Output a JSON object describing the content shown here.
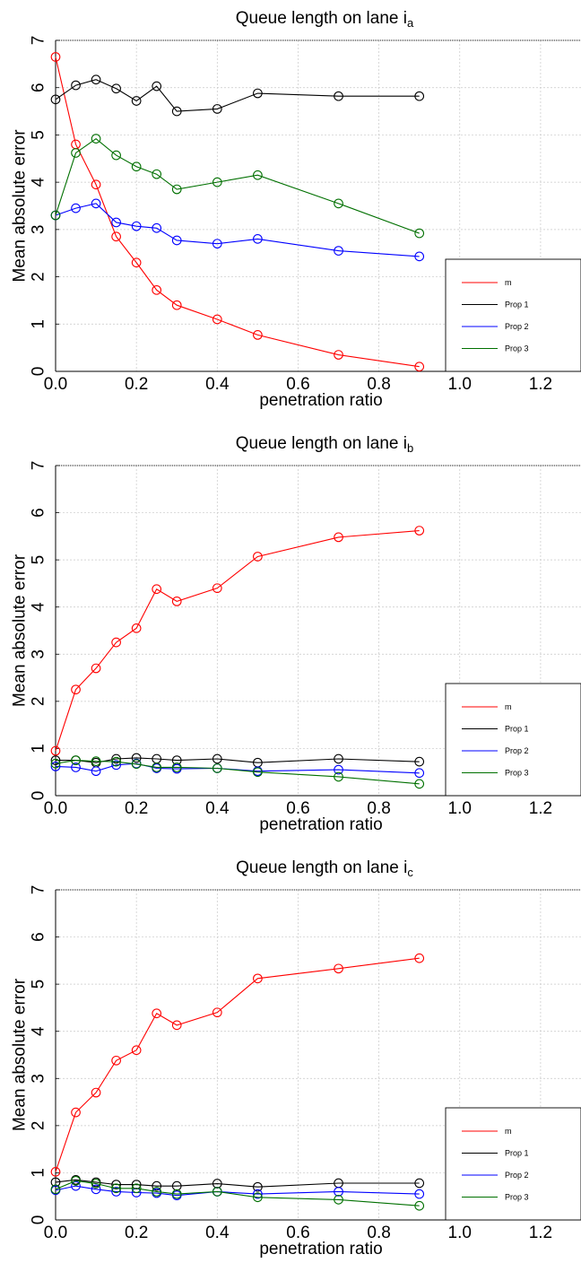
{
  "chart_data": [
    {
      "type": "line",
      "title": "Queue length on lane i",
      "title_sub": "a",
      "xlabel": "penetration ratio",
      "ylabel": "Mean absolute error",
      "xlim": [
        0,
        1.3
      ],
      "ylim": [
        0,
        7
      ],
      "xticks": [
        0.0,
        0.2,
        0.4,
        0.6,
        0.8,
        1.0,
        1.2
      ],
      "xtick_labels": [
        "0.0",
        "0.2",
        "0.4",
        "0.6",
        "0.8",
        "1.0",
        "1.2"
      ],
      "yticks": [
        0,
        1,
        2,
        3,
        4,
        5,
        6,
        7
      ],
      "ytick_labels": [
        "0",
        "1",
        "2",
        "3",
        "4",
        "5",
        "6",
        "7"
      ],
      "grid": true,
      "legend_position": "bottom-right",
      "x": [
        0.0,
        0.05,
        0.1,
        0.15,
        0.2,
        0.25,
        0.3,
        0.4,
        0.5,
        0.7,
        0.9
      ],
      "series": [
        {
          "name": "m",
          "color": "#ff0000",
          "values": [
            6.65,
            4.8,
            3.95,
            2.85,
            2.3,
            1.72,
            1.4,
            1.1,
            0.77,
            0.35,
            0.1
          ]
        },
        {
          "name": "Prop 1",
          "color": "#000000",
          "values": [
            5.75,
            6.05,
            6.17,
            5.98,
            5.72,
            6.03,
            5.5,
            5.55,
            5.88,
            5.82,
            5.82
          ]
        },
        {
          "name": "Prop 2",
          "color": "#0000ff",
          "values": [
            3.3,
            3.45,
            3.55,
            3.15,
            3.07,
            3.03,
            2.77,
            2.7,
            2.8,
            2.55,
            2.43
          ]
        },
        {
          "name": "Prop 3",
          "color": "#007000",
          "values": [
            3.3,
            4.62,
            4.92,
            4.57,
            4.33,
            4.17,
            3.85,
            4.0,
            4.15,
            3.55,
            2.92
          ]
        }
      ]
    },
    {
      "type": "line",
      "title": "Queue length on lane i",
      "title_sub": "b",
      "xlabel": "penetration ratio",
      "ylabel": "Mean absolute error",
      "xlim": [
        0,
        1.3
      ],
      "ylim": [
        0,
        7
      ],
      "xticks": [
        0.0,
        0.2,
        0.4,
        0.6,
        0.8,
        1.0,
        1.2
      ],
      "xtick_labels": [
        "0.0",
        "0.2",
        "0.4",
        "0.6",
        "0.8",
        "1.0",
        "1.2"
      ],
      "yticks": [
        0,
        1,
        2,
        3,
        4,
        5,
        6,
        7
      ],
      "ytick_labels": [
        "0",
        "1",
        "2",
        "3",
        "4",
        "5",
        "6",
        "7"
      ],
      "grid": true,
      "legend_position": "bottom-right",
      "x": [
        0.0,
        0.05,
        0.1,
        0.15,
        0.2,
        0.25,
        0.3,
        0.4,
        0.5,
        0.7,
        0.9
      ],
      "series": [
        {
          "name": "m",
          "color": "#ff0000",
          "values": [
            0.95,
            2.25,
            2.7,
            3.25,
            3.55,
            4.38,
            4.12,
            4.4,
            5.07,
            5.48,
            5.62
          ]
        },
        {
          "name": "Prop 1",
          "color": "#000000",
          "values": [
            0.75,
            0.75,
            0.7,
            0.78,
            0.8,
            0.78,
            0.75,
            0.78,
            0.7,
            0.78,
            0.72
          ]
        },
        {
          "name": "Prop 2",
          "color": "#0000ff",
          "values": [
            0.62,
            0.6,
            0.52,
            0.65,
            0.68,
            0.58,
            0.57,
            0.58,
            0.52,
            0.55,
            0.48
          ]
        },
        {
          "name": "Prop 3",
          "color": "#007000",
          "values": [
            0.68,
            0.75,
            0.73,
            0.72,
            0.67,
            0.6,
            0.6,
            0.58,
            0.5,
            0.4,
            0.25
          ]
        }
      ]
    },
    {
      "type": "line",
      "title": "Queue length on lane i",
      "title_sub": "c",
      "xlabel": "penetration ratio",
      "ylabel": "Mean absolute error",
      "xlim": [
        0,
        1.3
      ],
      "ylim": [
        0,
        7
      ],
      "xticks": [
        0.0,
        0.2,
        0.4,
        0.6,
        0.8,
        1.0,
        1.2
      ],
      "xtick_labels": [
        "0.0",
        "0.2",
        "0.4",
        "0.6",
        "0.8",
        "1.0",
        "1.2"
      ],
      "yticks": [
        0,
        1,
        2,
        3,
        4,
        5,
        6,
        7
      ],
      "ytick_labels": [
        "0",
        "1",
        "2",
        "3",
        "4",
        "5",
        "6",
        "7"
      ],
      "grid": true,
      "legend_position": "bottom-right",
      "x": [
        0.0,
        0.05,
        0.1,
        0.15,
        0.2,
        0.25,
        0.3,
        0.4,
        0.5,
        0.7,
        0.9
      ],
      "series": [
        {
          "name": "m",
          "color": "#ff0000",
          "values": [
            1.02,
            2.28,
            2.7,
            3.38,
            3.6,
            4.38,
            4.13,
            4.4,
            5.12,
            5.33,
            5.55
          ]
        },
        {
          "name": "Prop 1",
          "color": "#000000",
          "values": [
            0.8,
            0.85,
            0.8,
            0.75,
            0.75,
            0.72,
            0.72,
            0.77,
            0.7,
            0.78,
            0.78
          ]
        },
        {
          "name": "Prop 2",
          "color": "#0000ff",
          "values": [
            0.63,
            0.72,
            0.65,
            0.6,
            0.58,
            0.57,
            0.52,
            0.6,
            0.55,
            0.6,
            0.55
          ]
        },
        {
          "name": "Prop 3",
          "color": "#007000",
          "values": [
            0.65,
            0.83,
            0.77,
            0.67,
            0.67,
            0.6,
            0.55,
            0.6,
            0.48,
            0.43,
            0.3
          ]
        }
      ]
    }
  ]
}
